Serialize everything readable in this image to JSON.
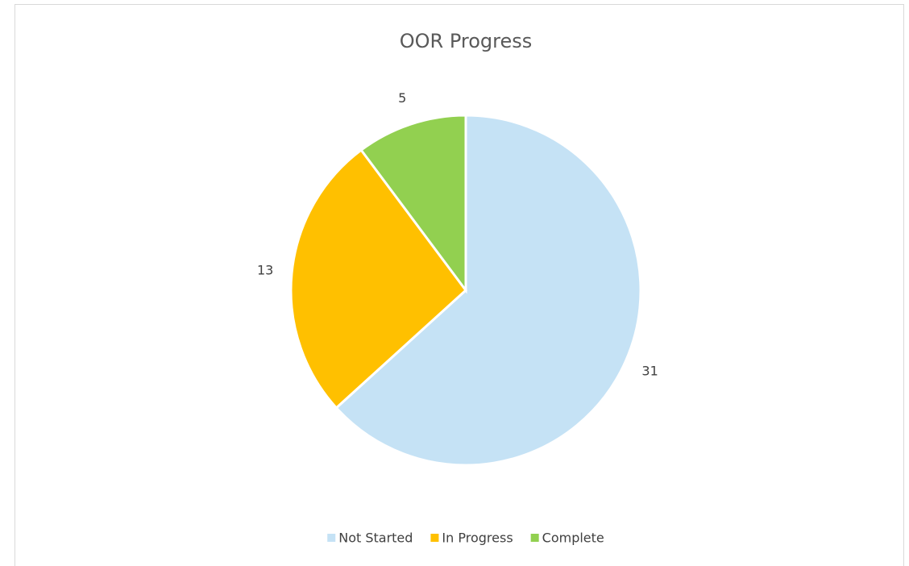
{
  "chart_data": {
    "type": "pie",
    "title": "OOR Progress",
    "categories": [
      "Not Started",
      "In Progress",
      "Complete"
    ],
    "values": [
      31,
      13,
      5
    ],
    "colors": [
      "#c5e2f5",
      "#ffc000",
      "#92d050"
    ],
    "legend": "bottom"
  }
}
